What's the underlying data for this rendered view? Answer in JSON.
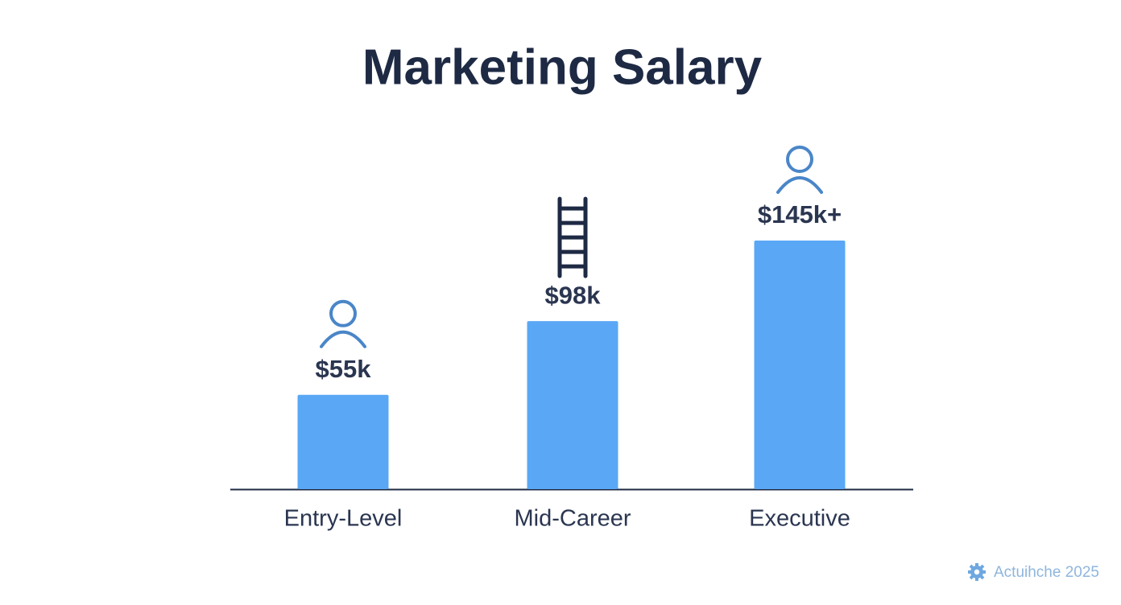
{
  "chart_data": {
    "type": "bar",
    "title": "Marketing Salary",
    "categories": [
      "Entry-Level",
      "Mid-Career",
      "Executive"
    ],
    "values": [
      55,
      98,
      145
    ],
    "value_labels": [
      "$55k",
      "$98k",
      "$145k+"
    ],
    "color": "#5aa8f5"
  },
  "watermark": "Actuihche 2025"
}
